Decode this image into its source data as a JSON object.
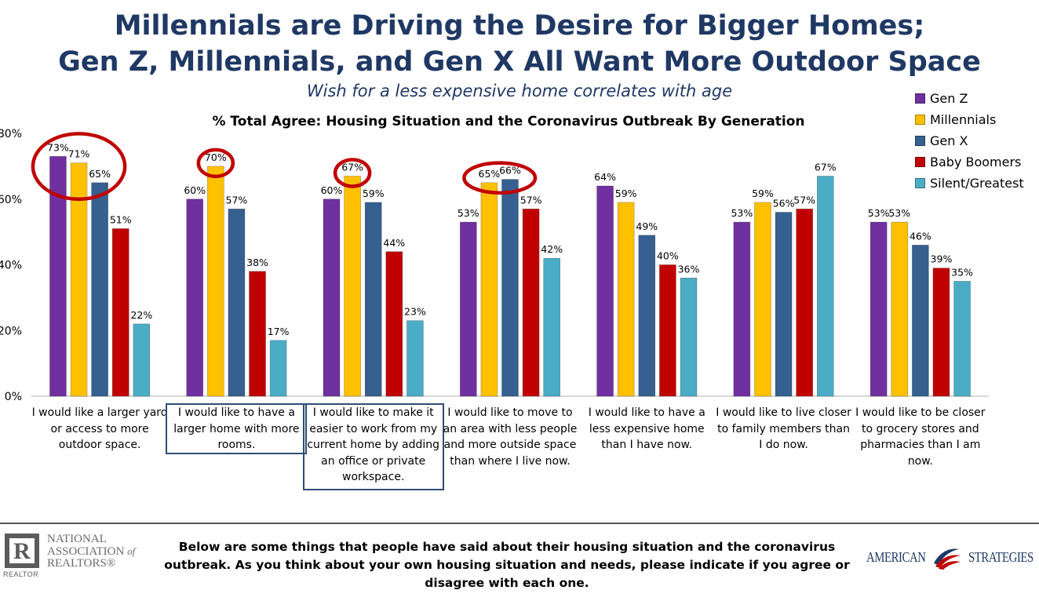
{
  "header": {
    "title_line1": "Millennials are Driving the Desire for Bigger Homes;",
    "title_line2": "Gen Z, Millennials, and Gen X All Want More Outdoor Space",
    "subtitle": "Wish for a less expensive home correlates with age"
  },
  "chart_data": {
    "type": "bar",
    "title": "% Total Agree: Housing Situation and the Coronavirus Outbreak By Generation",
    "categories": [
      "I would like a larger yard or access to more outdoor space.",
      "I would like to have a larger home with more rooms.",
      "I would like to make it easier to work from my current home by adding an office or private workspace.",
      "I would like to move to an area with less people and more outside space than where I live now.",
      "I would like to have a less expensive home than I have now.",
      "I would like to live closer to family members than I do now.",
      "I would like to be closer to grocery stores and pharmacies than I am now."
    ],
    "series": [
      {
        "name": "Gen Z",
        "color": "#7030a0",
        "values": [
          73,
          60,
          60,
          53,
          64,
          53,
          53
        ]
      },
      {
        "name": "Millennials",
        "color": "#ffc000",
        "values": [
          71,
          70,
          67,
          65,
          59,
          59,
          53
        ]
      },
      {
        "name": "Gen X",
        "color": "#35608f",
        "values": [
          65,
          57,
          59,
          66,
          49,
          56,
          46
        ]
      },
      {
        "name": "Baby Boomers",
        "color": "#c00000",
        "values": [
          51,
          38,
          44,
          57,
          40,
          57,
          39
        ]
      },
      {
        "name": "Silent/Greatest",
        "color": "#4bacc6",
        "values": [
          22,
          17,
          23,
          42,
          36,
          67,
          35
        ]
      }
    ],
    "y_ticks": [
      "0%",
      "20%",
      "40%",
      "60%",
      "80%"
    ],
    "ylim": [
      0,
      80
    ],
    "value_suffix": "%",
    "legend_position": "top-right",
    "grid": false,
    "highlight_circles": [
      {
        "category": 0,
        "series": [
          0,
          1,
          2
        ]
      },
      {
        "category": 1,
        "series": [
          1
        ]
      },
      {
        "category": 2,
        "series": [
          1
        ]
      },
      {
        "category": 3,
        "series": [
          1,
          2
        ]
      }
    ],
    "boxed_categories": [
      1,
      2
    ],
    "highlight_color": "#c00000",
    "box_color": "#2f4e73"
  },
  "footer": {
    "question": "Below are some things that people have said about their housing situation and the coronavirus outbreak.  As you think about your own housing situation and needs, please indicate if you agree or disagree with each one.",
    "nar_logo": {
      "letter": "R",
      "realtor": "REALTOR",
      "line1": "NATIONAL",
      "line2": "ASSOCIATION",
      "of": "of",
      "line3": "REALTORS®"
    },
    "american_strategies_logo": {
      "left": "AMERICAN",
      "right": "STRATEGIES"
    }
  }
}
